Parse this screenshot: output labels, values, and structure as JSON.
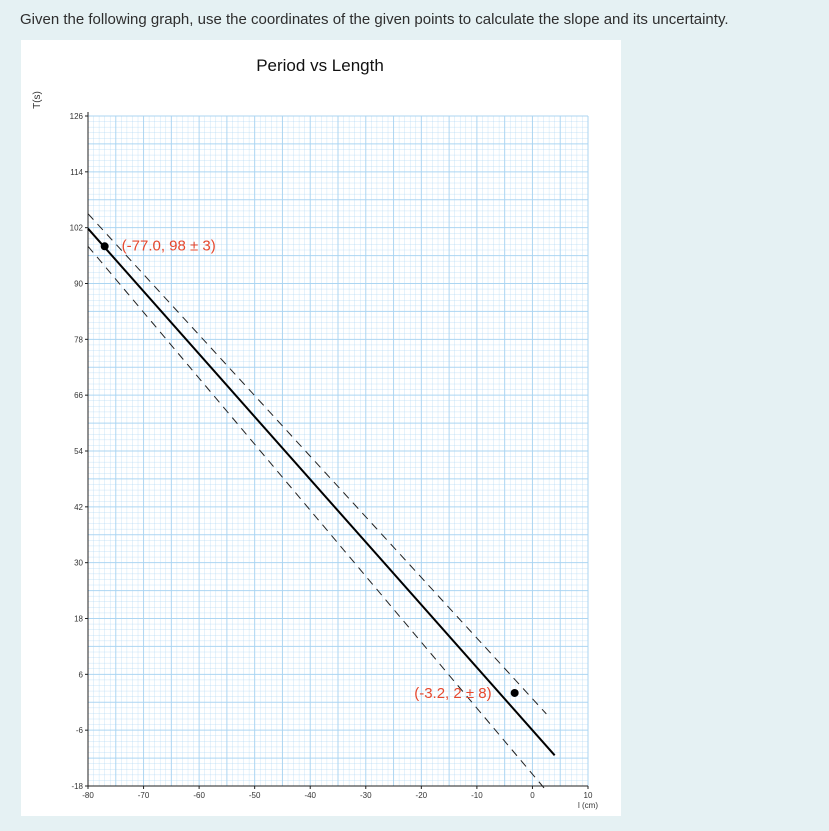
{
  "question": "Given the following graph, use the coordinates of the given points to calculate the slope and its uncertainty.",
  "chart_data": {
    "type": "line",
    "title": "Period vs Length",
    "xlabel": "l (cm)",
    "ylabel": "T(s)",
    "xlim": [
      -80,
      10
    ],
    "ylim": [
      -18,
      126
    ],
    "x_ticks": [
      "-80",
      "-70",
      "-60",
      "-50",
      "-40",
      "-30",
      "-20",
      "-10",
      "0",
      "10"
    ],
    "y_ticks": [
      "126",
      "114",
      "102",
      "90",
      "78",
      "66",
      "54",
      "42",
      "30",
      "18",
      "6",
      "-6",
      "-18"
    ],
    "grid": true,
    "colors": {
      "grid": "#a9d4f2",
      "annotation": "#e6482e",
      "line": "#000000"
    },
    "best_fit": {
      "x": [
        -80,
        4
      ],
      "y": [
        101.8,
        -11.4
      ]
    },
    "upper_bound": {
      "x": [
        -80,
        2.5
      ],
      "y": [
        105,
        -2.5
      ]
    },
    "lower_bound": {
      "x": [
        -80,
        2.5
      ],
      "y": [
        98,
        -19
      ]
    },
    "points": [
      {
        "x": -77.0,
        "y": 98,
        "label": "(-77.0, 98 ± 3)"
      },
      {
        "x": -3.2,
        "y": 2,
        "label": "(-3.2, 2 ± 8)"
      }
    ]
  }
}
